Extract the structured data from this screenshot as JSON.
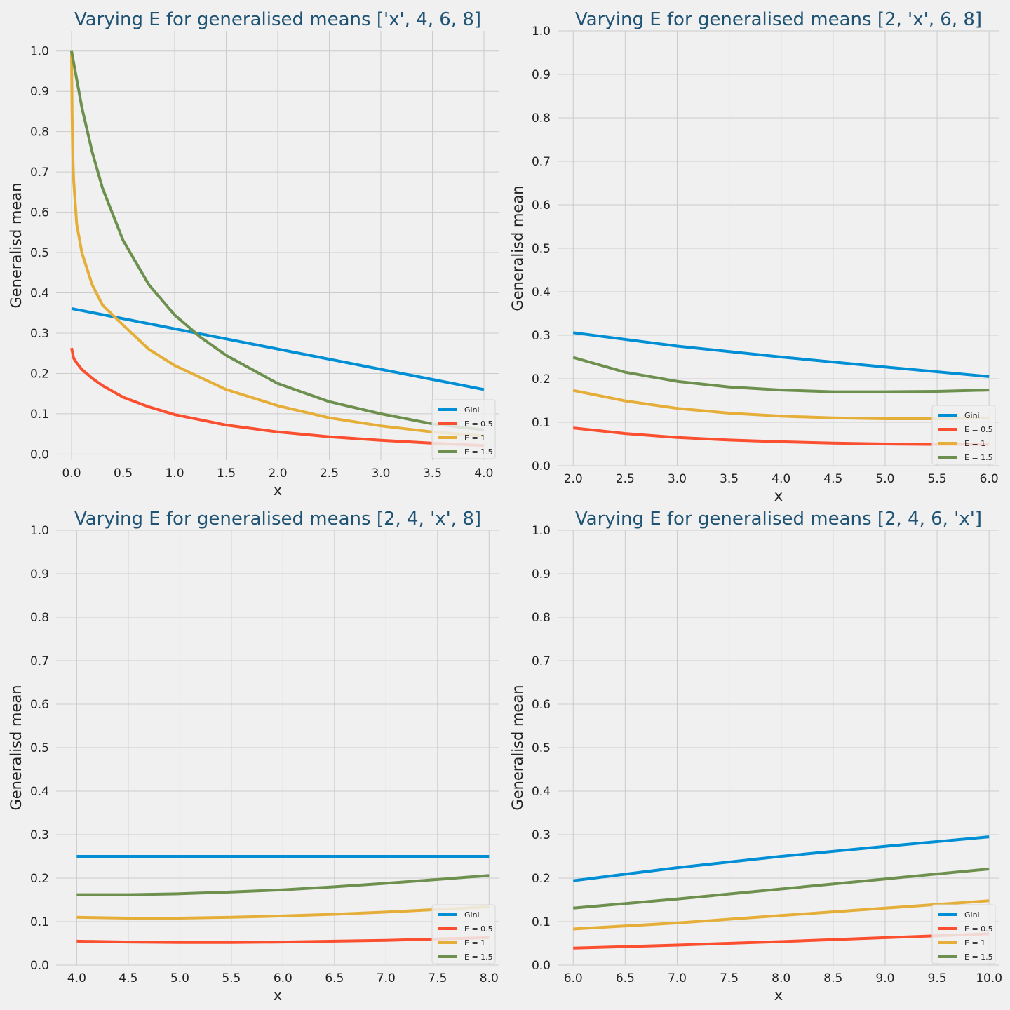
{
  "chart_data": [
    {
      "type": "line",
      "title": "Varying E for generalised means ['x', 4, 6, 8]",
      "xlabel": "x",
      "ylabel": "Generalisd mean",
      "xlim": [
        -0.15,
        4.15
      ],
      "ylim": [
        -0.015,
        1.05
      ],
      "xticks": [
        "0.0",
        "0.5",
        "1.0",
        "1.5",
        "2.0",
        "2.5",
        "3.0",
        "3.5",
        "4.0"
      ],
      "yticks": [
        "0.0",
        "0.1",
        "0.2",
        "0.3",
        "0.4",
        "0.5",
        "0.6",
        "0.7",
        "0.8",
        "0.9",
        "1.0"
      ],
      "legend_position": "lower-right",
      "series": [
        {
          "name": "Gini",
          "color": "#008fd5",
          "x": [
            0,
            4
          ],
          "y": [
            0.361,
            0.16
          ]
        },
        {
          "name": "E = 0.5",
          "color": "#fc4f30",
          "x": [
            0,
            0.02,
            0.05,
            0.1,
            0.2,
            0.3,
            0.5,
            0.75,
            1.0,
            1.5,
            2.0,
            2.5,
            3.0,
            3.5,
            4.0
          ],
          "y": [
            0.263,
            0.238,
            0.226,
            0.21,
            0.188,
            0.17,
            0.141,
            0.117,
            0.098,
            0.072,
            0.055,
            0.043,
            0.034,
            0.027,
            0.021
          ]
        },
        {
          "name": "E = 1",
          "color": "#e5ae38",
          "x": [
            0,
            0.005,
            0.01,
            0.02,
            0.05,
            0.1,
            0.2,
            0.3,
            0.5,
            0.75,
            1.0,
            1.5,
            2.0,
            2.5,
            3.0,
            3.5,
            4.0
          ],
          "y": [
            1.0,
            0.84,
            0.76,
            0.68,
            0.57,
            0.5,
            0.42,
            0.37,
            0.32,
            0.26,
            0.22,
            0.16,
            0.12,
            0.09,
            0.07,
            0.055,
            0.045
          ]
        },
        {
          "name": "E = 1.5",
          "color": "#6d904f",
          "x": [
            0,
            0.1,
            0.2,
            0.3,
            0.5,
            0.75,
            1.0,
            1.25,
            1.5,
            2.0,
            2.5,
            3.0,
            3.5,
            4.0
          ],
          "y": [
            1.0,
            0.86,
            0.75,
            0.66,
            0.53,
            0.42,
            0.345,
            0.29,
            0.245,
            0.175,
            0.13,
            0.1,
            0.075,
            0.06
          ]
        }
      ]
    },
    {
      "type": "line",
      "title": "Varying E for generalised means [2, 'x', 6, 8]",
      "xlabel": "x",
      "ylabel": "Generalisd mean",
      "xlim": [
        1.85,
        6.1
      ],
      "ylim": [
        0,
        1.0
      ],
      "xticks": [
        "2.0",
        "2.5",
        "3.0",
        "3.5",
        "4.0",
        "4.5",
        "5.0",
        "5.5",
        "6.0"
      ],
      "yticks": [
        "0.0",
        "0.1",
        "0.2",
        "0.3",
        "0.4",
        "0.5",
        "0.6",
        "0.7",
        "0.8",
        "0.9",
        "1.0"
      ],
      "legend_position": "lower-right",
      "series": [
        {
          "name": "Gini",
          "color": "#008fd5",
          "x": [
            2.0,
            3.0,
            4.0,
            5.0,
            6.0
          ],
          "y": [
            0.306,
            0.275,
            0.25,
            0.227,
            0.205
          ]
        },
        {
          "name": "E = 0.5",
          "color": "#fc4f30",
          "x": [
            2.0,
            2.5,
            3.0,
            3.5,
            4.0,
            4.5,
            5.0,
            5.5,
            6.0
          ],
          "y": [
            0.087,
            0.074,
            0.065,
            0.059,
            0.055,
            0.052,
            0.05,
            0.049,
            0.049
          ]
        },
        {
          "name": "E = 1",
          "color": "#e5ae38",
          "x": [
            2.0,
            2.5,
            3.0,
            3.5,
            4.0,
            4.5,
            5.0,
            5.5,
            6.0
          ],
          "y": [
            0.173,
            0.149,
            0.132,
            0.121,
            0.114,
            0.11,
            0.108,
            0.108,
            0.11
          ]
        },
        {
          "name": "E = 1.5",
          "color": "#6d904f",
          "x": [
            2.0,
            2.5,
            3.0,
            3.5,
            4.0,
            4.5,
            5.0,
            5.5,
            6.0
          ],
          "y": [
            0.249,
            0.215,
            0.194,
            0.181,
            0.174,
            0.17,
            0.17,
            0.171,
            0.174
          ]
        }
      ]
    },
    {
      "type": "line",
      "title": "Varying E for generalised means [2, 4, 'x', 8]",
      "xlabel": "x",
      "ylabel": "Generalisd mean",
      "xlim": [
        3.8,
        8.1
      ],
      "ylim": [
        0,
        1.0
      ],
      "xticks": [
        "4.0",
        "4.5",
        "5.0",
        "5.5",
        "6.0",
        "6.5",
        "7.0",
        "7.5",
        "8.0"
      ],
      "yticks": [
        "0.0",
        "0.1",
        "0.2",
        "0.3",
        "0.4",
        "0.5",
        "0.6",
        "0.7",
        "0.8",
        "0.9",
        "1.0"
      ],
      "legend_position": "lower-right",
      "series": [
        {
          "name": "Gini",
          "color": "#008fd5",
          "x": [
            4.0,
            8.0
          ],
          "y": [
            0.25,
            0.25
          ]
        },
        {
          "name": "E = 0.5",
          "color": "#fc4f30",
          "x": [
            4.0,
            4.5,
            5.0,
            5.5,
            6.0,
            6.5,
            7.0,
            7.5,
            8.0
          ],
          "y": [
            0.055,
            0.053,
            0.052,
            0.052,
            0.053,
            0.055,
            0.057,
            0.06,
            0.063
          ]
        },
        {
          "name": "E = 1",
          "color": "#e5ae38",
          "x": [
            4.0,
            4.5,
            5.0,
            5.5,
            6.0,
            6.5,
            7.0,
            7.5,
            8.0
          ],
          "y": [
            0.11,
            0.108,
            0.108,
            0.11,
            0.113,
            0.117,
            0.122,
            0.128,
            0.134
          ]
        },
        {
          "name": "E = 1.5",
          "color": "#6d904f",
          "x": [
            4.0,
            4.5,
            5.0,
            5.5,
            6.0,
            6.5,
            7.0,
            7.5,
            8.0
          ],
          "y": [
            0.162,
            0.162,
            0.164,
            0.168,
            0.173,
            0.18,
            0.188,
            0.197,
            0.206
          ]
        }
      ]
    },
    {
      "type": "line",
      "title": "Varying E for generalised means [2, 4, 6, 'x']",
      "xlabel": "x",
      "ylabel": "Generalisd mean",
      "xlim": [
        5.85,
        10.1
      ],
      "ylim": [
        0,
        1.0
      ],
      "xticks": [
        "6.0",
        "6.5",
        "7.0",
        "7.5",
        "8.0",
        "8.5",
        "9.0",
        "9.5",
        "10.0"
      ],
      "yticks": [
        "0.0",
        "0.1",
        "0.2",
        "0.3",
        "0.4",
        "0.5",
        "0.6",
        "0.7",
        "0.8",
        "0.9",
        "1.0"
      ],
      "legend_position": "lower-right",
      "series": [
        {
          "name": "Gini",
          "color": "#008fd5",
          "x": [
            6.0,
            7.0,
            8.0,
            9.0,
            10.0
          ],
          "y": [
            0.194,
            0.224,
            0.25,
            0.273,
            0.295
          ]
        },
        {
          "name": "E = 0.5",
          "color": "#fc4f30",
          "x": [
            6.0,
            7.0,
            8.0,
            9.0,
            10.0
          ],
          "y": [
            0.039,
            0.046,
            0.054,
            0.063,
            0.072
          ]
        },
        {
          "name": "E = 1",
          "color": "#e5ae38",
          "x": [
            6.0,
            7.0,
            8.0,
            9.0,
            10.0
          ],
          "y": [
            0.083,
            0.097,
            0.114,
            0.131,
            0.148
          ]
        },
        {
          "name": "E = 1.5",
          "color": "#6d904f",
          "x": [
            6.0,
            7.0,
            8.0,
            9.0,
            10.0
          ],
          "y": [
            0.131,
            0.152,
            0.175,
            0.198,
            0.221
          ]
        }
      ]
    }
  ]
}
